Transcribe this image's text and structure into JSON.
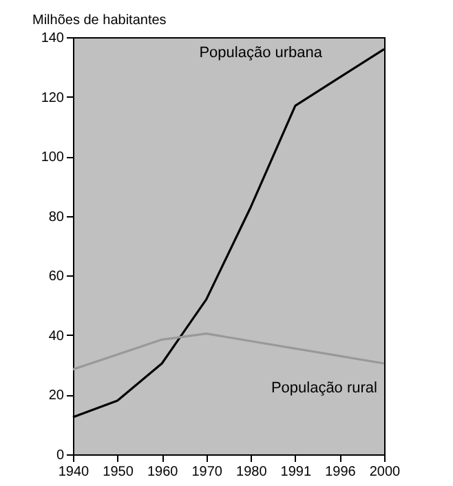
{
  "chart_data": {
    "type": "line",
    "ylabel": "Milhões de habitantes",
    "categories": [
      "1940",
      "1950",
      "1960",
      "1970",
      "1980",
      "1991",
      "1996",
      "2000"
    ],
    "series": [
      {
        "name": "População urbana",
        "color": "#000000",
        "values": [
          12.5,
          18,
          30.5,
          52,
          83,
          117,
          126.5,
          136
        ]
      },
      {
        "name": "População rural",
        "color": "#999999",
        "values": [
          28.5,
          33.5,
          38.5,
          40.5,
          38,
          35.5,
          33,
          30.5
        ]
      }
    ],
    "ylim": [
      0,
      140
    ],
    "yticks": [
      0,
      20,
      40,
      60,
      80,
      100,
      120,
      140
    ],
    "grid": false,
    "marker": "none",
    "line_style": "solid"
  }
}
